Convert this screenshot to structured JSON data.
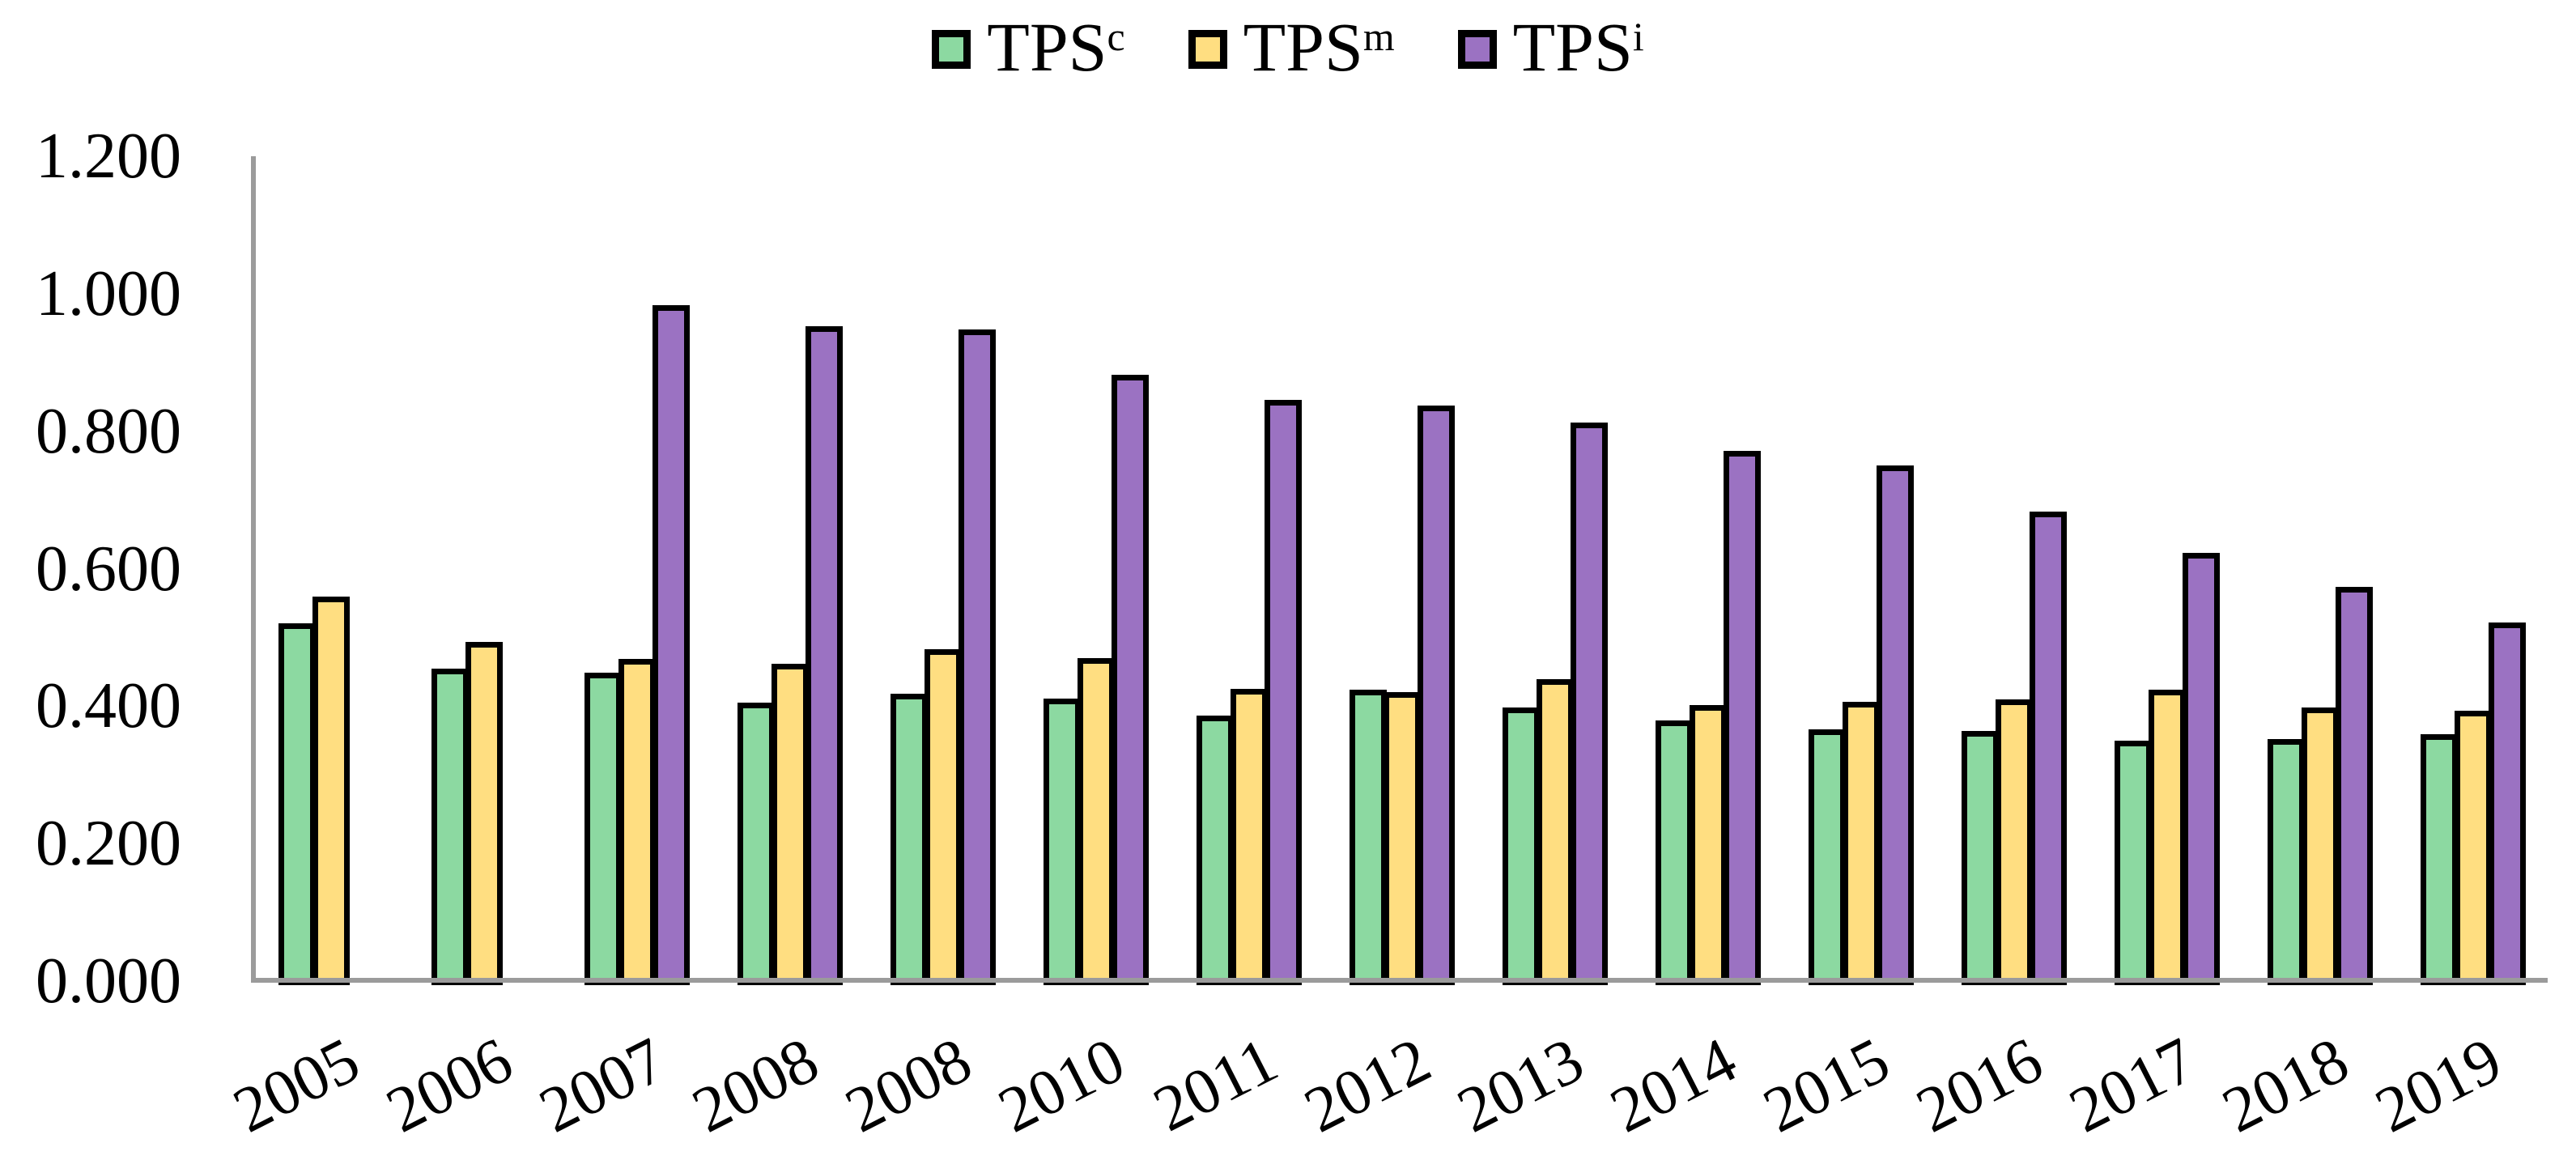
{
  "chart_data": {
    "type": "bar",
    "title": "",
    "xlabel": "",
    "ylabel": "",
    "ylim": [
      0.0,
      1.2
    ],
    "grid": false,
    "legend_position": "top-center",
    "y_ticks": [
      "1.200",
      "1.000",
      "0.800",
      "0.600",
      "0.400",
      "0.200",
      "0.000"
    ],
    "categories": [
      "2005",
      "2006",
      "2007",
      "2008",
      "2008",
      "2010",
      "2011",
      "2012",
      "2013",
      "2014",
      "2015",
      "2016",
      "2017",
      "2018",
      "2019"
    ],
    "series": [
      {
        "name": "TPSc",
        "label_base": "TPS",
        "label_sup": "c",
        "color": "#8CD9A1",
        "values": [
          0.52,
          0.455,
          0.449,
          0.405,
          0.418,
          0.411,
          0.386,
          0.424,
          0.398,
          0.379,
          0.366,
          0.364,
          0.35,
          0.352,
          0.359
        ]
      },
      {
        "name": "TPSm",
        "label_base": "TPS",
        "label_sup": "m",
        "color": "#FFDE81",
        "values": [
          0.559,
          0.494,
          0.469,
          0.462,
          0.483,
          0.47,
          0.425,
          0.42,
          0.439,
          0.401,
          0.406,
          0.41,
          0.424,
          0.398,
          0.393
        ]
      },
      {
        "name": "TPSi",
        "label_base": "TPS",
        "label_sup": "i",
        "color": "#9B72C2",
        "values": [
          null,
          null,
          0.983,
          0.953,
          0.948,
          0.882,
          0.845,
          0.837,
          0.812,
          0.771,
          0.75,
          0.683,
          0.623,
          0.573,
          0.522
        ]
      }
    ],
    "axis_color": "#9b9b9b",
    "bar_border_color": "#000000"
  }
}
